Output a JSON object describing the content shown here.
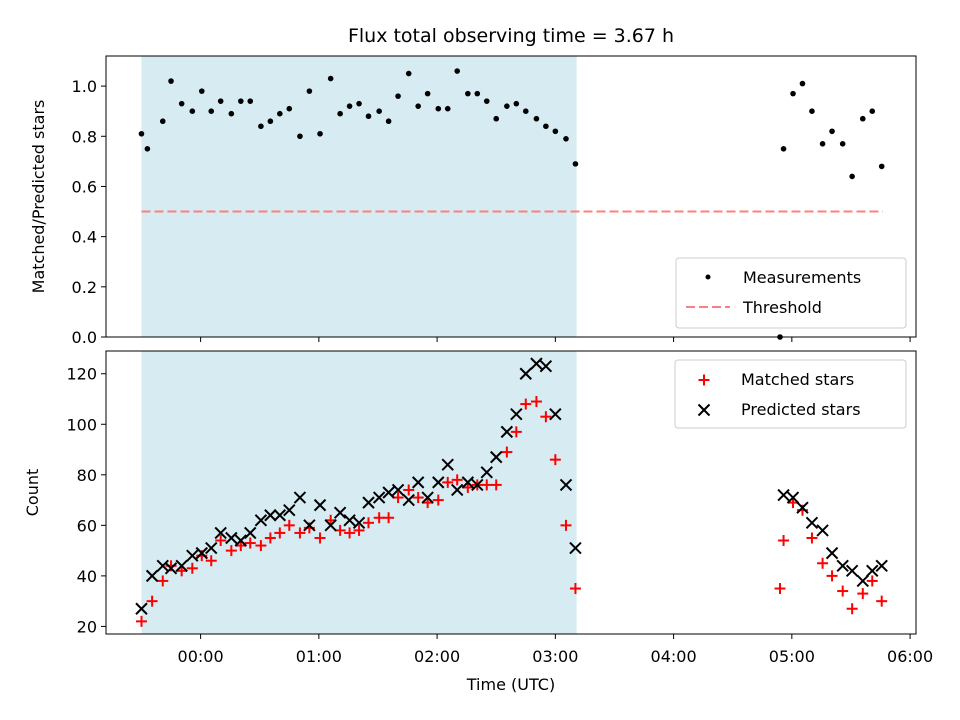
{
  "chart_data": [
    {
      "type": "scatter",
      "title": "Flux total observing time = 3.67 h",
      "xlabel": "",
      "ylabel": "Matched/Predicted stars",
      "x_axis": "time (hours from 00:00 UTC)",
      "xlim": [
        -0.8,
        6.05
      ],
      "ylim": [
        0,
        1.12
      ],
      "yticks": [
        {
          "v": 0.0,
          "label": "0.0"
        },
        {
          "v": 0.2,
          "label": "0.2"
        },
        {
          "v": 0.4,
          "label": "0.4"
        },
        {
          "v": 0.6,
          "label": "0.6"
        },
        {
          "v": 0.8,
          "label": "0.8"
        },
        {
          "v": 1.0,
          "label": "1.0"
        }
      ],
      "xticks": [
        0,
        1,
        2,
        3,
        4,
        5,
        6
      ],
      "grid": false,
      "legend_position": "lower-right",
      "shaded_span": [
        -0.5,
        3.18
      ],
      "threshold": {
        "name": "Threshold",
        "value": 0.5,
        "x": [
          -0.5,
          5.77
        ],
        "color": "#ff7f7f",
        "style": "dashed"
      },
      "series": [
        {
          "name": "Measurements",
          "marker": "dot",
          "color": "#000000",
          "points": [
            [
              -0.5,
              0.81
            ],
            [
              -0.45,
              0.75
            ],
            [
              -0.32,
              0.86
            ],
            [
              -0.25,
              1.02
            ],
            [
              -0.16,
              0.93
            ],
            [
              -0.07,
              0.9
            ],
            [
              0.01,
              0.98
            ],
            [
              0.09,
              0.9
            ],
            [
              0.17,
              0.94
            ],
            [
              0.26,
              0.89
            ],
            [
              0.34,
              0.94
            ],
            [
              0.42,
              0.94
            ],
            [
              0.51,
              0.84
            ],
            [
              0.59,
              0.86
            ],
            [
              0.67,
              0.89
            ],
            [
              0.75,
              0.91
            ],
            [
              0.84,
              0.8
            ],
            [
              0.92,
              0.98
            ],
            [
              1.01,
              0.81
            ],
            [
              1.1,
              1.03
            ],
            [
              1.18,
              0.89
            ],
            [
              1.26,
              0.92
            ],
            [
              1.34,
              0.93
            ],
            [
              1.42,
              0.88
            ],
            [
              1.51,
              0.9
            ],
            [
              1.59,
              0.86
            ],
            [
              1.67,
              0.96
            ],
            [
              1.76,
              1.05
            ],
            [
              1.84,
              0.92
            ],
            [
              1.92,
              0.97
            ],
            [
              2.01,
              0.91
            ],
            [
              2.09,
              0.91
            ],
            [
              2.17,
              1.06
            ],
            [
              2.26,
              0.97
            ],
            [
              2.34,
              0.97
            ],
            [
              2.42,
              0.94
            ],
            [
              2.5,
              0.87
            ],
            [
              2.59,
              0.92
            ],
            [
              2.67,
              0.93
            ],
            [
              2.75,
              0.9
            ],
            [
              2.84,
              0.87
            ],
            [
              2.92,
              0.84
            ],
            [
              3.0,
              0.82
            ],
            [
              3.09,
              0.79
            ],
            [
              3.17,
              0.69
            ],
            [
              4.9,
              0.0
            ],
            [
              4.93,
              0.75
            ],
            [
              5.01,
              0.97
            ],
            [
              5.09,
              1.01
            ],
            [
              5.17,
              0.9
            ],
            [
              5.26,
              0.77
            ],
            [
              5.34,
              0.82
            ],
            [
              5.43,
              0.77
            ],
            [
              5.51,
              0.64
            ],
            [
              5.6,
              0.87
            ],
            [
              5.68,
              0.9
            ],
            [
              5.76,
              0.68
            ]
          ]
        }
      ]
    },
    {
      "type": "scatter",
      "title": "",
      "xlabel": "Time (UTC)",
      "ylabel": "Count",
      "x_axis": "time (hours from 00:00 UTC)",
      "xlim": [
        -0.8,
        6.05
      ],
      "ylim": [
        17,
        129
      ],
      "yticks": [
        20,
        40,
        60,
        80,
        100,
        120
      ],
      "xticks": [
        {
          "v": 0,
          "label": "00:00"
        },
        {
          "v": 1,
          "label": "01:00"
        },
        {
          "v": 2,
          "label": "02:00"
        },
        {
          "v": 3,
          "label": "03:00"
        },
        {
          "v": 4,
          "label": "04:00"
        },
        {
          "v": 5,
          "label": "05:00"
        },
        {
          "v": 6,
          "label": "06:00"
        }
      ],
      "grid": false,
      "legend_position": "upper-right",
      "shaded_span": [
        -0.5,
        3.18
      ],
      "series": [
        {
          "name": "Matched stars",
          "marker": "plus",
          "color": "#ff0000",
          "points": [
            [
              -0.5,
              22
            ],
            [
              -0.41,
              30
            ],
            [
              -0.32,
              38
            ],
            [
              -0.25,
              44
            ],
            [
              -0.16,
              42
            ],
            [
              -0.07,
              43
            ],
            [
              0.01,
              48
            ],
            [
              0.09,
              46
            ],
            [
              0.17,
              54
            ],
            [
              0.26,
              50
            ],
            [
              0.34,
              52
            ],
            [
              0.42,
              53
            ],
            [
              0.51,
              52
            ],
            [
              0.59,
              55
            ],
            [
              0.67,
              57
            ],
            [
              0.75,
              60
            ],
            [
              0.84,
              57
            ],
            [
              0.92,
              59
            ],
            [
              1.01,
              55
            ],
            [
              1.1,
              62
            ],
            [
              1.18,
              58
            ],
            [
              1.26,
              57
            ],
            [
              1.34,
              58
            ],
            [
              1.42,
              61
            ],
            [
              1.51,
              63
            ],
            [
              1.59,
              63
            ],
            [
              1.67,
              71
            ],
            [
              1.76,
              74
            ],
            [
              1.84,
              71
            ],
            [
              1.92,
              69
            ],
            [
              2.01,
              70
            ],
            [
              2.09,
              77
            ],
            [
              2.17,
              78
            ],
            [
              2.26,
              75
            ],
            [
              2.34,
              76
            ],
            [
              2.42,
              76
            ],
            [
              2.5,
              76
            ],
            [
              2.59,
              89
            ],
            [
              2.67,
              97
            ],
            [
              2.75,
              108
            ],
            [
              2.84,
              109
            ],
            [
              2.92,
              103
            ],
            [
              3.0,
              86
            ],
            [
              3.09,
              60
            ],
            [
              3.17,
              35
            ],
            [
              4.9,
              35
            ],
            [
              4.93,
              54
            ],
            [
              5.01,
              69
            ],
            [
              5.09,
              66
            ],
            [
              5.17,
              55
            ],
            [
              5.26,
              45
            ],
            [
              5.34,
              40
            ],
            [
              5.43,
              34
            ],
            [
              5.51,
              27
            ],
            [
              5.6,
              33
            ],
            [
              5.68,
              38
            ],
            [
              5.76,
              30
            ]
          ]
        },
        {
          "name": "Predicted stars",
          "marker": "x",
          "color": "#000000",
          "points": [
            [
              -0.5,
              27
            ],
            [
              -0.41,
              40
            ],
            [
              -0.32,
              44
            ],
            [
              -0.25,
              43
            ],
            [
              -0.16,
              44
            ],
            [
              -0.07,
              48
            ],
            [
              0.01,
              49
            ],
            [
              0.09,
              51
            ],
            [
              0.17,
              57
            ],
            [
              0.26,
              55
            ],
            [
              0.34,
              54
            ],
            [
              0.42,
              57
            ],
            [
              0.51,
              62
            ],
            [
              0.59,
              64
            ],
            [
              0.67,
              64
            ],
            [
              0.75,
              66
            ],
            [
              0.84,
              71
            ],
            [
              0.92,
              60
            ],
            [
              1.01,
              68
            ],
            [
              1.1,
              60
            ],
            [
              1.18,
              65
            ],
            [
              1.26,
              62
            ],
            [
              1.34,
              61
            ],
            [
              1.42,
              69
            ],
            [
              1.51,
              71
            ],
            [
              1.59,
              73
            ],
            [
              1.67,
              74
            ],
            [
              1.76,
              70
            ],
            [
              1.84,
              77
            ],
            [
              1.92,
              71
            ],
            [
              2.01,
              77
            ],
            [
              2.09,
              84
            ],
            [
              2.17,
              74
            ],
            [
              2.26,
              77
            ],
            [
              2.34,
              76
            ],
            [
              2.42,
              81
            ],
            [
              2.5,
              87
            ],
            [
              2.59,
              97
            ],
            [
              2.67,
              104
            ],
            [
              2.75,
              120
            ],
            [
              2.84,
              124
            ],
            [
              2.92,
              123
            ],
            [
              3.0,
              104
            ],
            [
              3.09,
              76
            ],
            [
              3.17,
              51
            ],
            [
              4.93,
              72
            ],
            [
              5.01,
              71
            ],
            [
              5.09,
              67
            ],
            [
              5.17,
              61
            ],
            [
              5.26,
              58
            ],
            [
              5.34,
              49
            ],
            [
              5.43,
              44
            ],
            [
              5.51,
              42
            ],
            [
              5.6,
              38
            ],
            [
              5.68,
              42
            ],
            [
              5.76,
              44
            ]
          ]
        }
      ]
    }
  ]
}
